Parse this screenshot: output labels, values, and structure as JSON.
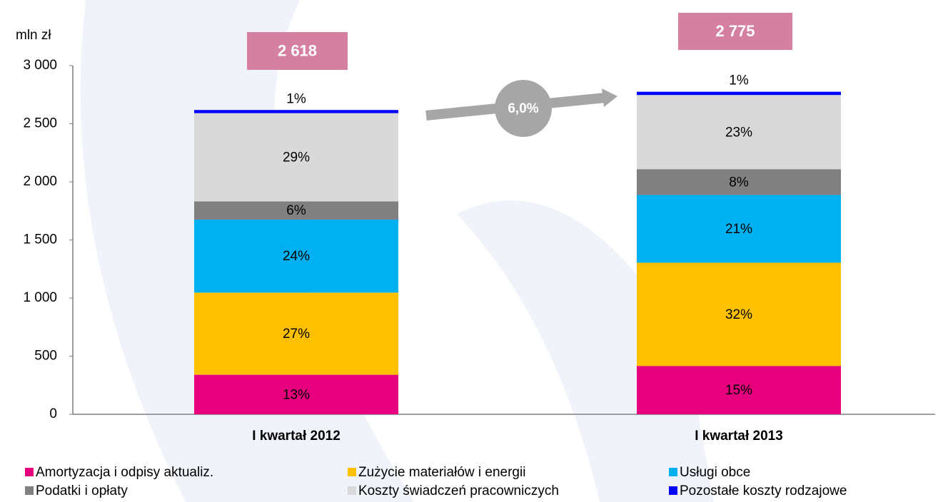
{
  "chart_data": {
    "type": "stacked-bar",
    "y_label": "mln zł",
    "categories": [
      "I kwartał 2012",
      "I kwartał 2013"
    ],
    "series": [
      {
        "name": "Amortyzacja i odpisy aktualiz.",
        "color": "#e6007e",
        "values": [
          340,
          416
        ],
        "value_labels": [
          "13%",
          "15%"
        ]
      },
      {
        "name": "Zużycie materiałów i energii",
        "color": "#ffc000",
        "values": [
          707,
          888
        ],
        "value_labels": [
          "27%",
          "32%"
        ]
      },
      {
        "name": "Usługi obce",
        "color": "#00b0f0",
        "values": [
          628,
          583
        ],
        "value_labels": [
          "24%",
          "21%"
        ]
      },
      {
        "name": "Podatki i opłaty",
        "color": "#808080",
        "values": [
          157,
          222
        ],
        "value_labels": [
          "6%",
          "8%"
        ]
      },
      {
        "name": "Koszty świadczeń pracowniczych",
        "color": "#d9d9d9",
        "values": [
          759,
          638
        ],
        "value_labels": [
          "29%",
          "23%"
        ]
      },
      {
        "name": "Pozostałe koszty rodzajowe",
        "color": "#0000ff",
        "values": [
          27,
          28
        ],
        "value_labels": [
          "1%",
          "1%"
        ]
      }
    ],
    "totals": [
      2618,
      2775
    ],
    "total_labels": [
      "2 618",
      "2 775"
    ],
    "growth_label": "6,0%",
    "ylim": [
      0,
      3000
    ],
    "yticks": [
      0,
      500,
      {
        "value": 1000,
        "label": "1 000"
      },
      {
        "value": 1500,
        "label": "1 500"
      },
      {
        "value": 2000,
        "label": "2 000"
      },
      {
        "value": 2500,
        "label": "2 500"
      },
      {
        "value": 3000,
        "label": "3 000"
      }
    ]
  }
}
